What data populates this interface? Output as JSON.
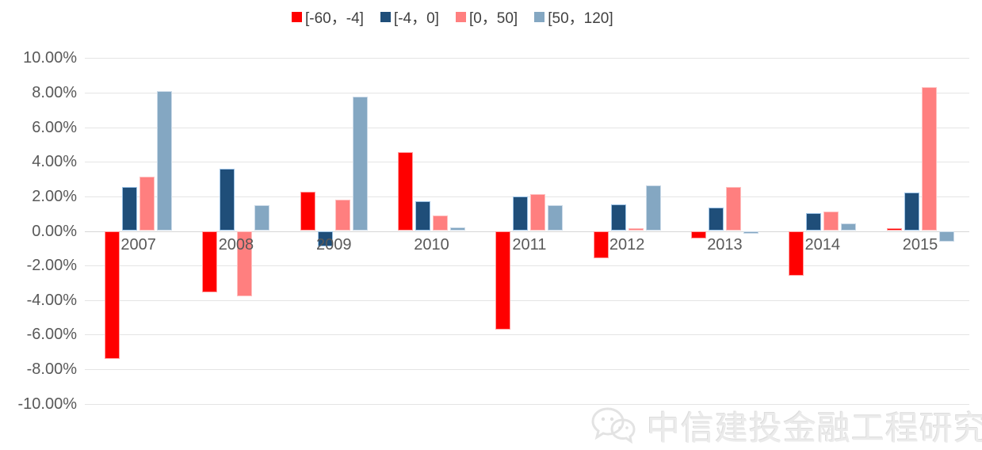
{
  "legend": {
    "items": [
      {
        "label": "[-60，-4]",
        "color": "#FF0000"
      },
      {
        "label": "[-4，0]",
        "color": "#1F4E79"
      },
      {
        "label": "[0，50]",
        "color": "#FF7F7F"
      },
      {
        "label": "[50，120]",
        "color": "#84A7C2"
      }
    ]
  },
  "chart_data": {
    "type": "bar",
    "title": "",
    "xlabel": "",
    "ylabel": "",
    "unit": "percent",
    "categories": [
      "2007",
      "2008",
      "2009",
      "2010",
      "2011",
      "2012",
      "2013",
      "2014",
      "2015"
    ],
    "series": [
      {
        "name": "[-60，-4]",
        "color": "#FF0000",
        "border_color": "#FF9E9E",
        "values": [
          -7.4,
          -3.55,
          2.25,
          4.55,
          -5.7,
          -1.6,
          -0.45,
          -2.6,
          0.15
        ]
      },
      {
        "name": "[-4，0]",
        "color": "#1F4E79",
        "border_color": "#9DC3E6",
        "values": [
          2.55,
          3.6,
          -0.9,
          1.7,
          2.0,
          1.55,
          1.35,
          1.05,
          2.2
        ]
      },
      {
        "name": "[0，50]",
        "color": "#FF7F7F",
        "border_color": "#FFC0C0",
        "values": [
          3.15,
          -3.8,
          1.8,
          0.9,
          2.15,
          0.15,
          2.55,
          1.1,
          8.3
        ]
      },
      {
        "name": "[50，120]",
        "color": "#84A7C2",
        "border_color": "#CBDAE8",
        "values": [
          8.1,
          1.5,
          7.75,
          0.2,
          1.5,
          2.65,
          -0.15,
          0.45,
          -0.6
        ]
      }
    ],
    "y_ticks": [
      "10.00%",
      "8.00%",
      "6.00%",
      "4.00%",
      "2.00%",
      "0.00%",
      "-2.00%",
      "-4.00%",
      "-6.00%",
      "-8.00%",
      "-10.00%"
    ],
    "y_tick_values": [
      10,
      8,
      6,
      4,
      2,
      0,
      -2,
      -4,
      -6,
      -8,
      -10
    ],
    "ylim": [
      -10,
      10
    ],
    "grid": true,
    "legend_position": "top",
    "grid_color": "#E4E4E4",
    "axis_text_color": "#595959"
  },
  "watermark": {
    "text": "中信建投金融工程研究",
    "logo": "chat-bubbles-logo-icon"
  }
}
